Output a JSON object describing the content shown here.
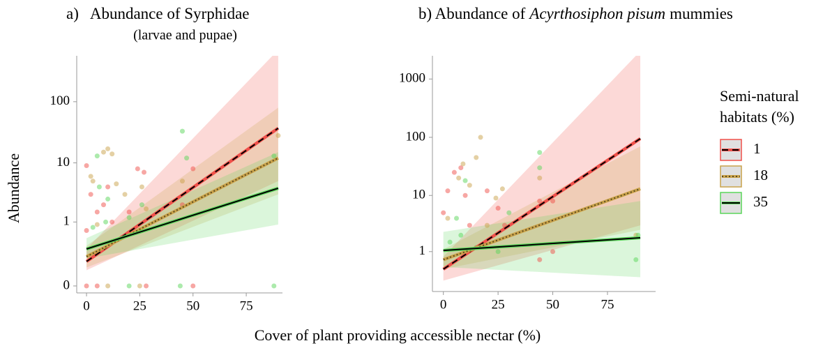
{
  "chart_data": [
    {
      "type": "line",
      "title": [
        {
          "text": "a)   Abundance of Syrphidae"
        }
      ],
      "subtitle": "(larvae and pupae)",
      "xlim": [
        -4.6,
        92
      ],
      "xticks": [
        0,
        25,
        50,
        75
      ],
      "ylim": [
        0,
        560
      ],
      "yticks": [
        0,
        1,
        10,
        100
      ],
      "yscale": "pseudo-log",
      "series": [
        {
          "name": "1",
          "color": "#f0504a",
          "dash": "dashed",
          "x": [
            0,
            90
          ],
          "values": [
            0.15,
            37
          ],
          "lower": [
            0.08,
            5
          ],
          "upper": [
            0.3,
            700
          ],
          "points_x": [
            0,
            0,
            2,
            5,
            8,
            10,
            12,
            20,
            24,
            27,
            45,
            50,
            0,
            5,
            28,
            50
          ],
          "points_y": [
            9,
            0.7,
            3,
            1.5,
            2,
            4,
            1,
            1.5,
            8,
            7,
            2,
            8,
            0,
            0,
            0,
            0
          ]
        },
        {
          "name": "18",
          "color": "#c9a24a",
          "dash": "dotted",
          "x": [
            0,
            90
          ],
          "values": [
            0.2,
            12
          ],
          "lower": [
            0.1,
            3
          ],
          "upper": [
            0.35,
            80
          ],
          "points_x": [
            2,
            3,
            8,
            10,
            12,
            14,
            5,
            18,
            28,
            26,
            45,
            90,
            10,
            25
          ],
          "points_y": [
            6,
            5,
            15,
            17,
            14,
            4.5,
            0.9,
            3,
            1.7,
            4,
            5,
            28,
            0,
            0
          ]
        },
        {
          "name": "35",
          "color": "#5ad65a",
          "dash": "solid",
          "x": [
            0,
            90
          ],
          "values": [
            0.3,
            3.8
          ],
          "lower": [
            0.18,
            0.9
          ],
          "upper": [
            0.5,
            15
          ],
          "points_x": [
            3,
            5,
            6,
            10,
            9,
            20,
            26,
            45,
            47,
            88,
            20,
            44,
            88
          ],
          "points_y": [
            0.8,
            13,
            4,
            2.5,
            1,
            1.2,
            2,
            33,
            12,
            13,
            0,
            0,
            0
          ]
        }
      ]
    },
    {
      "type": "line",
      "title": [
        {
          "text": "b) Abundance of"
        },
        {
          "text": "Acyrthosiphon pisum",
          "italic": true
        },
        {
          "text": "mummies"
        }
      ],
      "xlim": [
        -5,
        97
      ],
      "xticks": [
        0,
        25,
        50,
        75
      ],
      "ylim": [
        0.2,
        2500
      ],
      "yticks": [
        1,
        10,
        100,
        1000
      ],
      "yscale": "pseudo-log",
      "series": [
        {
          "name": "1",
          "color": "#f0504a",
          "dash": "dashed",
          "x": [
            0,
            90
          ],
          "values": [
            0.45,
            95
          ],
          "lower": [
            0.25,
            3
          ],
          "upper": [
            0.8,
            3000
          ],
          "points_x": [
            0,
            2,
            5,
            8,
            10,
            12,
            20,
            25,
            28,
            44,
            50,
            50,
            44
          ],
          "points_y": [
            5,
            12,
            25,
            30,
            10,
            3,
            12,
            6,
            3,
            8,
            1,
            8,
            0.7
          ]
        },
        {
          "name": "18",
          "color": "#c9a24a",
          "dash": "dotted",
          "x": [
            0,
            90
          ],
          "values": [
            0.7,
            13
          ],
          "lower": [
            0.45,
            2.5
          ],
          "upper": [
            1.1,
            70
          ],
          "points_x": [
            2,
            7,
            9,
            12,
            15,
            17,
            20,
            24,
            27,
            44,
            88
          ],
          "points_y": [
            4,
            20,
            35,
            15,
            45,
            100,
            3,
            9,
            13,
            20,
            2
          ]
        },
        {
          "name": "35",
          "color": "#5ad65a",
          "dash": "solid",
          "x": [
            0,
            90
          ],
          "values": [
            1.05,
            1.8
          ],
          "lower": [
            0.5,
            0.3
          ],
          "upper": [
            2.3,
            8
          ],
          "points_x": [
            3,
            6,
            8,
            10,
            15,
            25,
            30,
            44,
            44,
            88,
            89
          ],
          "points_y": [
            1.5,
            4,
            2,
            18,
            1.2,
            1,
            5,
            55,
            30,
            0.7,
            2
          ]
        }
      ]
    }
  ],
  "shared": {
    "xlabel": "Cover of plant providing accessible nectar (%)",
    "ylabel": "Abundance",
    "legend_title": [
      "Semi-natural",
      "habitats (%)"
    ]
  }
}
